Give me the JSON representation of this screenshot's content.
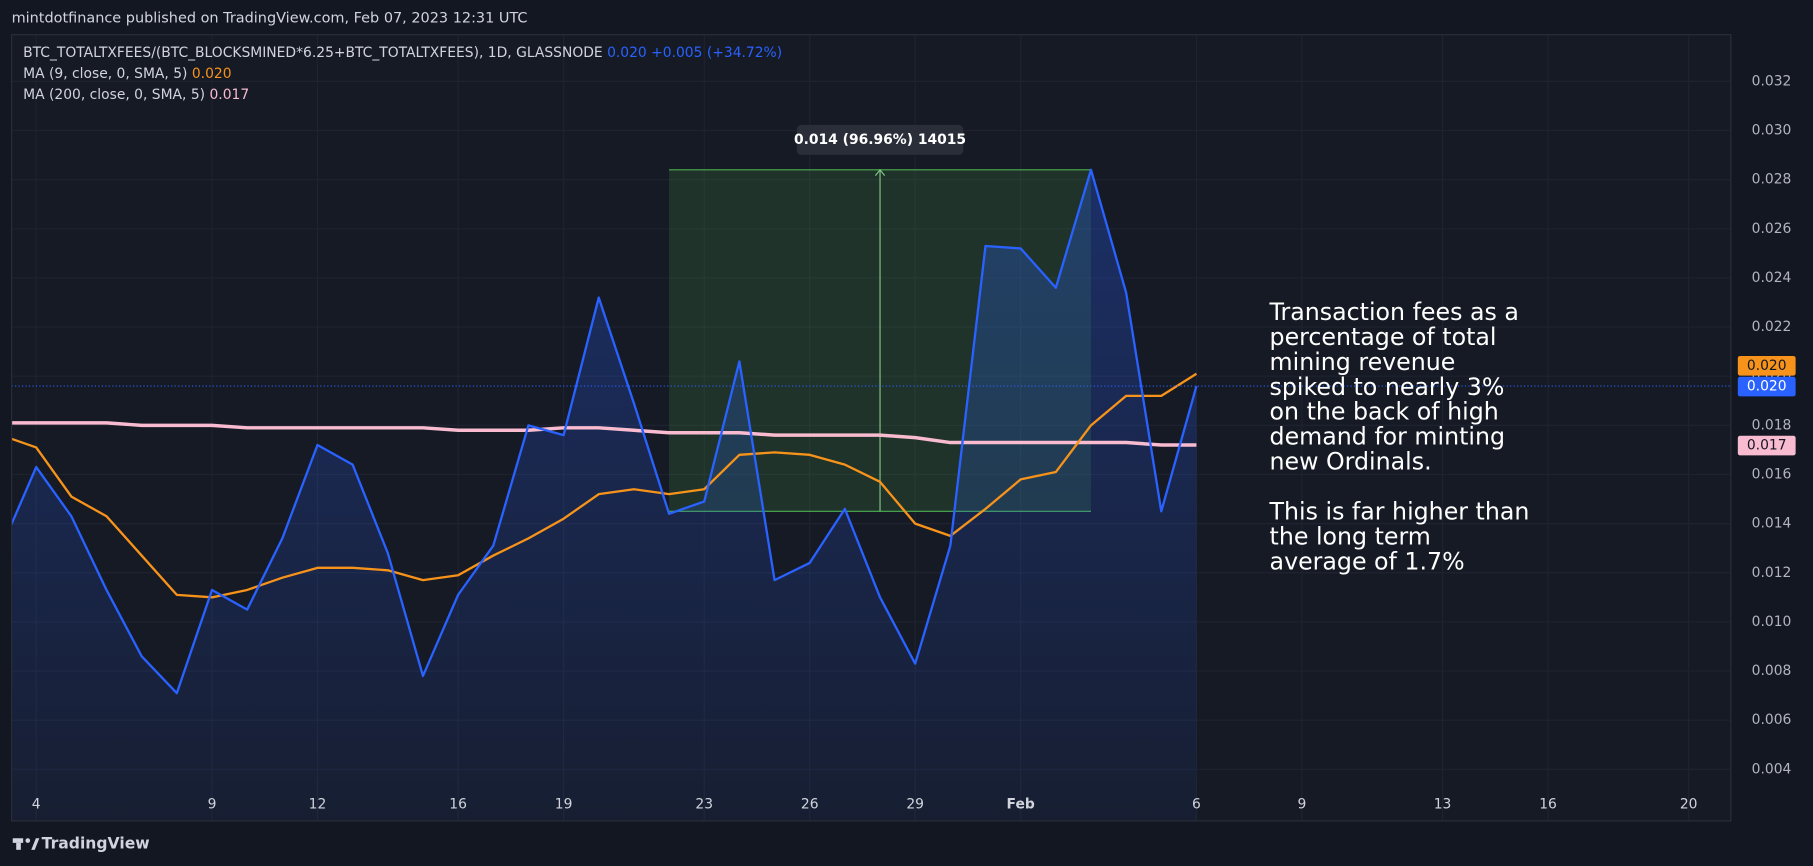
{
  "chart_data": {
    "type": "line",
    "header": "mintdotfinance published on TradingView.com, Feb 07, 2023 12:31 UTC",
    "footer": "TradingView",
    "x": [
      3,
      4,
      5,
      6,
      7,
      8,
      9,
      10,
      11,
      12,
      13,
      14,
      15,
      16,
      17,
      18,
      19,
      20,
      21,
      22,
      23,
      24,
      25,
      26,
      27,
      28,
      29,
      30,
      31,
      32,
      33,
      34,
      35,
      36,
      37
    ],
    "series": [
      {
        "name": "BTC_TOTALTXFEES/(BTC_BLOCKSMINED*6.25+BTC_TOTALTXFEES), 1D, GLASSNODE",
        "color": "#2962ff",
        "legend_value": "0.020",
        "change": "+0.005 (+34.72%)",
        "last_label": "0.020",
        "fill": true,
        "values": [
          0.013,
          0.0163,
          0.0143,
          0.0113,
          0.0086,
          0.0071,
          0.0113,
          0.0105,
          0.0134,
          0.0172,
          0.0164,
          0.0128,
          0.0078,
          0.0111,
          0.0131,
          0.018,
          0.0176,
          0.0232,
          0.0189,
          0.0144,
          0.0149,
          0.0206,
          0.0117,
          0.0124,
          0.0146,
          0.011,
          0.0083,
          0.0131,
          0.0253,
          0.0252,
          0.0236,
          0.0284,
          0.0234,
          0.0145,
          0.0196
        ]
      },
      {
        "name": "MA (9, close, 0, SMA, 5)",
        "color": "#f7931a",
        "legend_value": "0.020",
        "last_label": "0.020",
        "values": [
          0.0176,
          0.0171,
          0.0151,
          0.0143,
          0.0127,
          0.0111,
          0.011,
          0.0113,
          0.0118,
          0.0122,
          0.0122,
          0.0121,
          0.0117,
          0.0119,
          0.0127,
          0.0134,
          0.0142,
          0.0152,
          0.0154,
          0.0152,
          0.0154,
          0.0168,
          0.0169,
          0.0168,
          0.0164,
          0.0157,
          0.014,
          0.0135,
          0.0146,
          0.0158,
          0.0161,
          0.018,
          0.0192,
          0.0192,
          0.0201
        ]
      },
      {
        "name": "MA (200, close, 0, SMA, 5)",
        "color": "#f8bbd0",
        "legend_value": "0.017",
        "last_label": "0.017",
        "values": [
          0.0181,
          0.0181,
          0.0181,
          0.0181,
          0.018,
          0.018,
          0.018,
          0.0179,
          0.0179,
          0.0179,
          0.0179,
          0.0179,
          0.0179,
          0.0178,
          0.0178,
          0.0178,
          0.0179,
          0.0179,
          0.0178,
          0.0177,
          0.0177,
          0.0177,
          0.0176,
          0.0176,
          0.0176,
          0.0176,
          0.0175,
          0.0173,
          0.0173,
          0.0173,
          0.0173,
          0.0173,
          0.0173,
          0.0172,
          0.0172
        ]
      }
    ],
    "xlim": [
      3.3,
      52.2
    ],
    "ylim": [
      0.0019,
      0.0339
    ],
    "xticks": [
      4,
      9,
      12,
      16,
      19,
      23,
      26,
      29,
      {
        "value": 32,
        "label": "Feb"
      },
      {
        "value": 37,
        "label": "6"
      },
      {
        "value": 40,
        "label": "9"
      },
      {
        "value": 44,
        "label": "13"
      },
      {
        "value": 47,
        "label": "16"
      },
      {
        "value": 51,
        "label": "20"
      }
    ],
    "yticks": [
      0.004,
      0.006,
      0.008,
      {
        "value": 0.01,
        "label": "0.010"
      },
      0.012,
      0.014,
      0.016,
      0.018,
      {
        "value": 0.02,
        "label": "0.020"
      },
      0.022,
      0.024,
      0.026,
      0.028,
      {
        "value": 0.03,
        "label": "0.030"
      },
      0.032
    ],
    "grid": true,
    "range_box": {
      "x0": 22,
      "x1": 34,
      "y0": 0.0145,
      "y1": 0.0284,
      "label": "0.014 (96.96%) 14015"
    },
    "annotation": [
      "Transaction fees as a",
      "percentage of total",
      "mining revenue",
      "spiked to nearly 3%",
      "on the back of high",
      "demand for minting",
      "new Ordinals.",
      "",
      "This is far higher than",
      "the long term",
      "average of 1.7%"
    ]
  }
}
